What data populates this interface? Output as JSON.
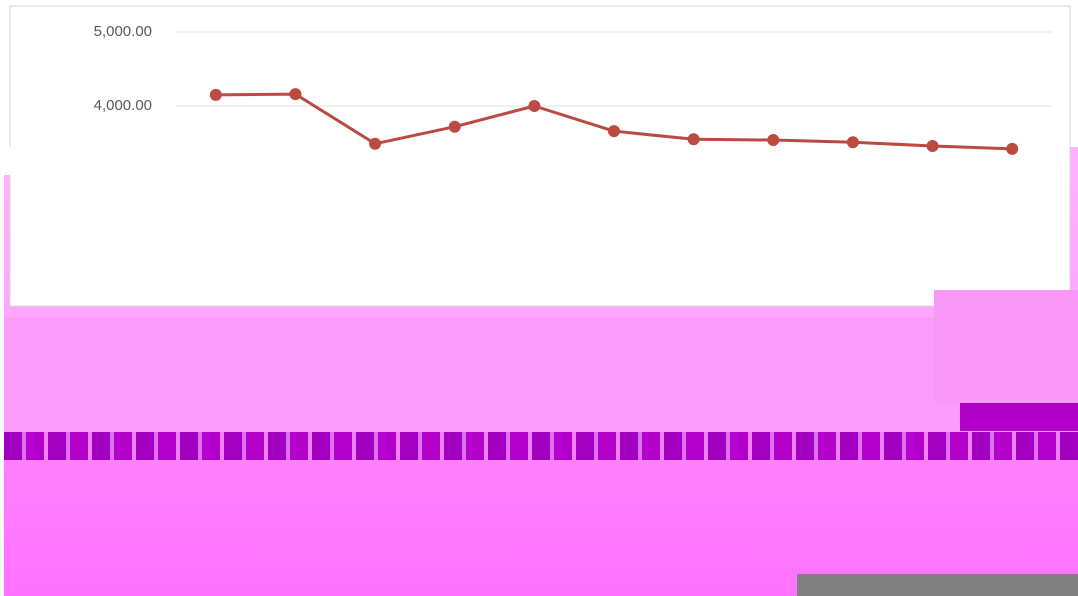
{
  "chart_data": {
    "type": "line",
    "categories": [
      null,
      null,
      null,
      null,
      null,
      null,
      null,
      null,
      null,
      null,
      null
    ],
    "values": [
      4150,
      4160,
      3490,
      3720,
      4000,
      3660,
      3550,
      3540,
      3510,
      3460,
      3420
    ],
    "color": "#bb4a42",
    "ylim": [
      3000,
      5000
    ],
    "yticks": [
      {
        "value": 4000,
        "label": "4,000.00"
      },
      {
        "value": 5000,
        "label": "5,000.00"
      }
    ],
    "grid": true
  }
}
